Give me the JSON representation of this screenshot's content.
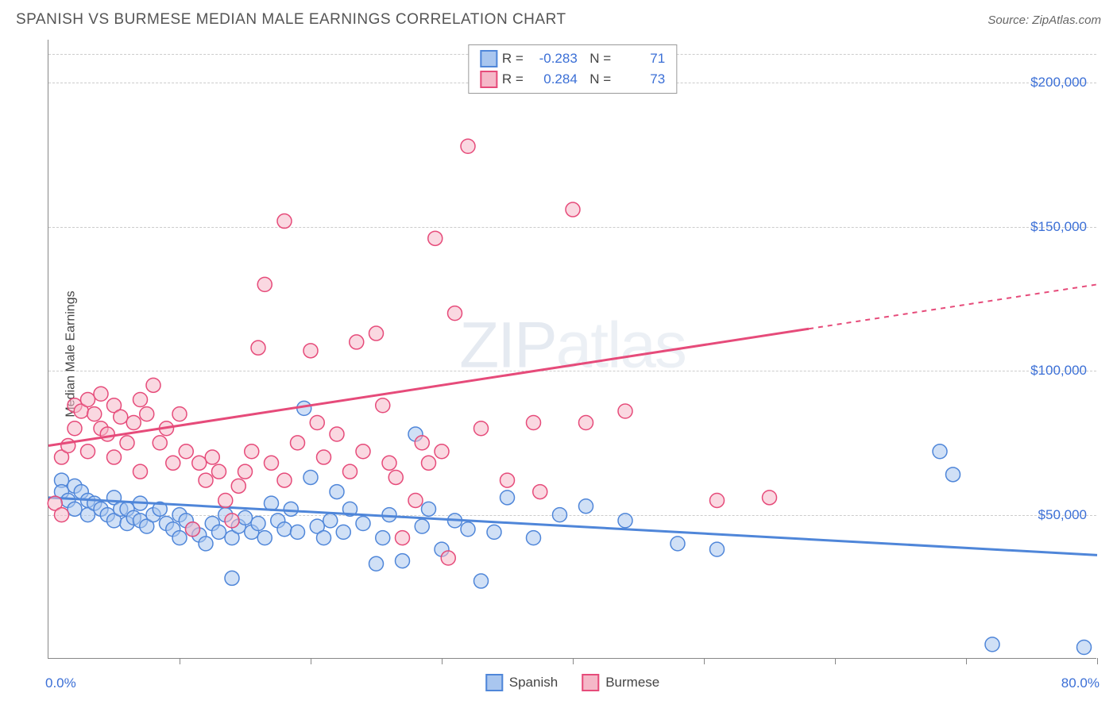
{
  "title": "SPANISH VS BURMESE MEDIAN MALE EARNINGS CORRELATION CHART",
  "source_label": "Source:",
  "source_name": "ZipAtlas.com",
  "watermark": "ZIPatlas",
  "ylabel": "Median Male Earnings",
  "chart": {
    "type": "scatter",
    "xlim": [
      0,
      80
    ],
    "ylim": [
      0,
      215000
    ],
    "x_ticks": [
      0,
      10,
      20,
      30,
      40,
      50,
      60,
      70,
      80
    ],
    "x_tick_labels_shown": {
      "0": "0.0%",
      "80": "80.0%"
    },
    "y_gridlines": [
      50000,
      100000,
      150000,
      200000
    ],
    "y_tick_labels": [
      "$50,000",
      "$100,000",
      "$150,000",
      "$200,000"
    ],
    "background_color": "#ffffff",
    "grid_color": "#cccccc",
    "marker_radius": 9,
    "marker_opacity": 0.55,
    "line_width": 3,
    "series": [
      {
        "name": "Spanish",
        "fill": "#a9c6ef",
        "stroke": "#4f86d9",
        "R": "-0.283",
        "N": "71",
        "trend": {
          "y_at_x0": 56000,
          "y_at_x80": 36000,
          "dash_from_x": null
        },
        "points": [
          [
            1,
            62000
          ],
          [
            1,
            58000
          ],
          [
            1.5,
            55000
          ],
          [
            2,
            60000
          ],
          [
            2,
            52000
          ],
          [
            2.5,
            58000
          ],
          [
            3,
            55000
          ],
          [
            3,
            50000
          ],
          [
            3.5,
            54000
          ],
          [
            4,
            52000
          ],
          [
            4.5,
            50000
          ],
          [
            5,
            56000
          ],
          [
            5,
            48000
          ],
          [
            5.5,
            52000
          ],
          [
            6,
            47000
          ],
          [
            6,
            52000
          ],
          [
            6.5,
            49000
          ],
          [
            7,
            54000
          ],
          [
            7,
            48000
          ],
          [
            7.5,
            46000
          ],
          [
            8,
            50000
          ],
          [
            8.5,
            52000
          ],
          [
            9,
            47000
          ],
          [
            9.5,
            45000
          ],
          [
            10,
            50000
          ],
          [
            10,
            42000
          ],
          [
            10.5,
            48000
          ],
          [
            11,
            45000
          ],
          [
            11.5,
            43000
          ],
          [
            12,
            40000
          ],
          [
            12.5,
            47000
          ],
          [
            13,
            44000
          ],
          [
            13.5,
            50000
          ],
          [
            14,
            28000
          ],
          [
            14,
            42000
          ],
          [
            14.5,
            46000
          ],
          [
            15,
            49000
          ],
          [
            15.5,
            44000
          ],
          [
            16,
            47000
          ],
          [
            16.5,
            42000
          ],
          [
            17,
            54000
          ],
          [
            17.5,
            48000
          ],
          [
            18,
            45000
          ],
          [
            18.5,
            52000
          ],
          [
            19,
            44000
          ],
          [
            19.5,
            87000
          ],
          [
            20,
            63000
          ],
          [
            20.5,
            46000
          ],
          [
            21,
            42000
          ],
          [
            21.5,
            48000
          ],
          [
            22,
            58000
          ],
          [
            22.5,
            44000
          ],
          [
            23,
            52000
          ],
          [
            24,
            47000
          ],
          [
            25,
            33000
          ],
          [
            25.5,
            42000
          ],
          [
            26,
            50000
          ],
          [
            27,
            34000
          ],
          [
            28,
            78000
          ],
          [
            28.5,
            46000
          ],
          [
            29,
            52000
          ],
          [
            30,
            38000
          ],
          [
            31,
            48000
          ],
          [
            32,
            45000
          ],
          [
            33,
            27000
          ],
          [
            34,
            44000
          ],
          [
            35,
            56000
          ],
          [
            37,
            42000
          ],
          [
            39,
            50000
          ],
          [
            41,
            53000
          ],
          [
            44,
            48000
          ],
          [
            48,
            40000
          ],
          [
            51,
            38000
          ],
          [
            68,
            72000
          ],
          [
            69,
            64000
          ],
          [
            72,
            5000
          ],
          [
            79,
            4000
          ]
        ]
      },
      {
        "name": "Burmese",
        "fill": "#f5b8c8",
        "stroke": "#e64b7a",
        "R": "0.284",
        "N": "73",
        "trend": {
          "y_at_x0": 74000,
          "y_at_x80": 130000,
          "dash_from_x": 58
        },
        "points": [
          [
            0.5,
            54000
          ],
          [
            1,
            50000
          ],
          [
            1,
            70000
          ],
          [
            1.5,
            74000
          ],
          [
            2,
            88000
          ],
          [
            2,
            80000
          ],
          [
            2.5,
            86000
          ],
          [
            3,
            72000
          ],
          [
            3,
            90000
          ],
          [
            3.5,
            85000
          ],
          [
            4,
            80000
          ],
          [
            4,
            92000
          ],
          [
            4.5,
            78000
          ],
          [
            5,
            88000
          ],
          [
            5,
            70000
          ],
          [
            5.5,
            84000
          ],
          [
            6,
            75000
          ],
          [
            6.5,
            82000
          ],
          [
            7,
            90000
          ],
          [
            7,
            65000
          ],
          [
            7.5,
            85000
          ],
          [
            8,
            95000
          ],
          [
            8.5,
            75000
          ],
          [
            9,
            80000
          ],
          [
            9.5,
            68000
          ],
          [
            10,
            85000
          ],
          [
            10.5,
            72000
          ],
          [
            11,
            45000
          ],
          [
            11.5,
            68000
          ],
          [
            12,
            62000
          ],
          [
            12.5,
            70000
          ],
          [
            13,
            65000
          ],
          [
            13.5,
            55000
          ],
          [
            14,
            48000
          ],
          [
            14.5,
            60000
          ],
          [
            15,
            65000
          ],
          [
            15.5,
            72000
          ],
          [
            16,
            108000
          ],
          [
            16.5,
            130000
          ],
          [
            17,
            68000
          ],
          [
            18,
            62000
          ],
          [
            18,
            152000
          ],
          [
            19,
            75000
          ],
          [
            20,
            107000
          ],
          [
            20.5,
            82000
          ],
          [
            21,
            70000
          ],
          [
            22,
            78000
          ],
          [
            23,
            65000
          ],
          [
            23.5,
            110000
          ],
          [
            24,
            72000
          ],
          [
            25,
            113000
          ],
          [
            25.5,
            88000
          ],
          [
            26,
            68000
          ],
          [
            26.5,
            63000
          ],
          [
            27,
            42000
          ],
          [
            28,
            55000
          ],
          [
            28.5,
            75000
          ],
          [
            29,
            68000
          ],
          [
            29.5,
            146000
          ],
          [
            30,
            72000
          ],
          [
            30.5,
            35000
          ],
          [
            31,
            120000
          ],
          [
            32,
            178000
          ],
          [
            33,
            80000
          ],
          [
            35,
            62000
          ],
          [
            37,
            82000
          ],
          [
            37.5,
            58000
          ],
          [
            40,
            156000
          ],
          [
            41,
            82000
          ],
          [
            44,
            86000
          ],
          [
            51,
            55000
          ],
          [
            55,
            56000
          ]
        ]
      }
    ]
  },
  "legend_bottom": [
    {
      "label": "Spanish",
      "fill": "#a9c6ef",
      "stroke": "#4f86d9"
    },
    {
      "label": "Burmese",
      "fill": "#f5b8c8",
      "stroke": "#e64b7a"
    }
  ]
}
